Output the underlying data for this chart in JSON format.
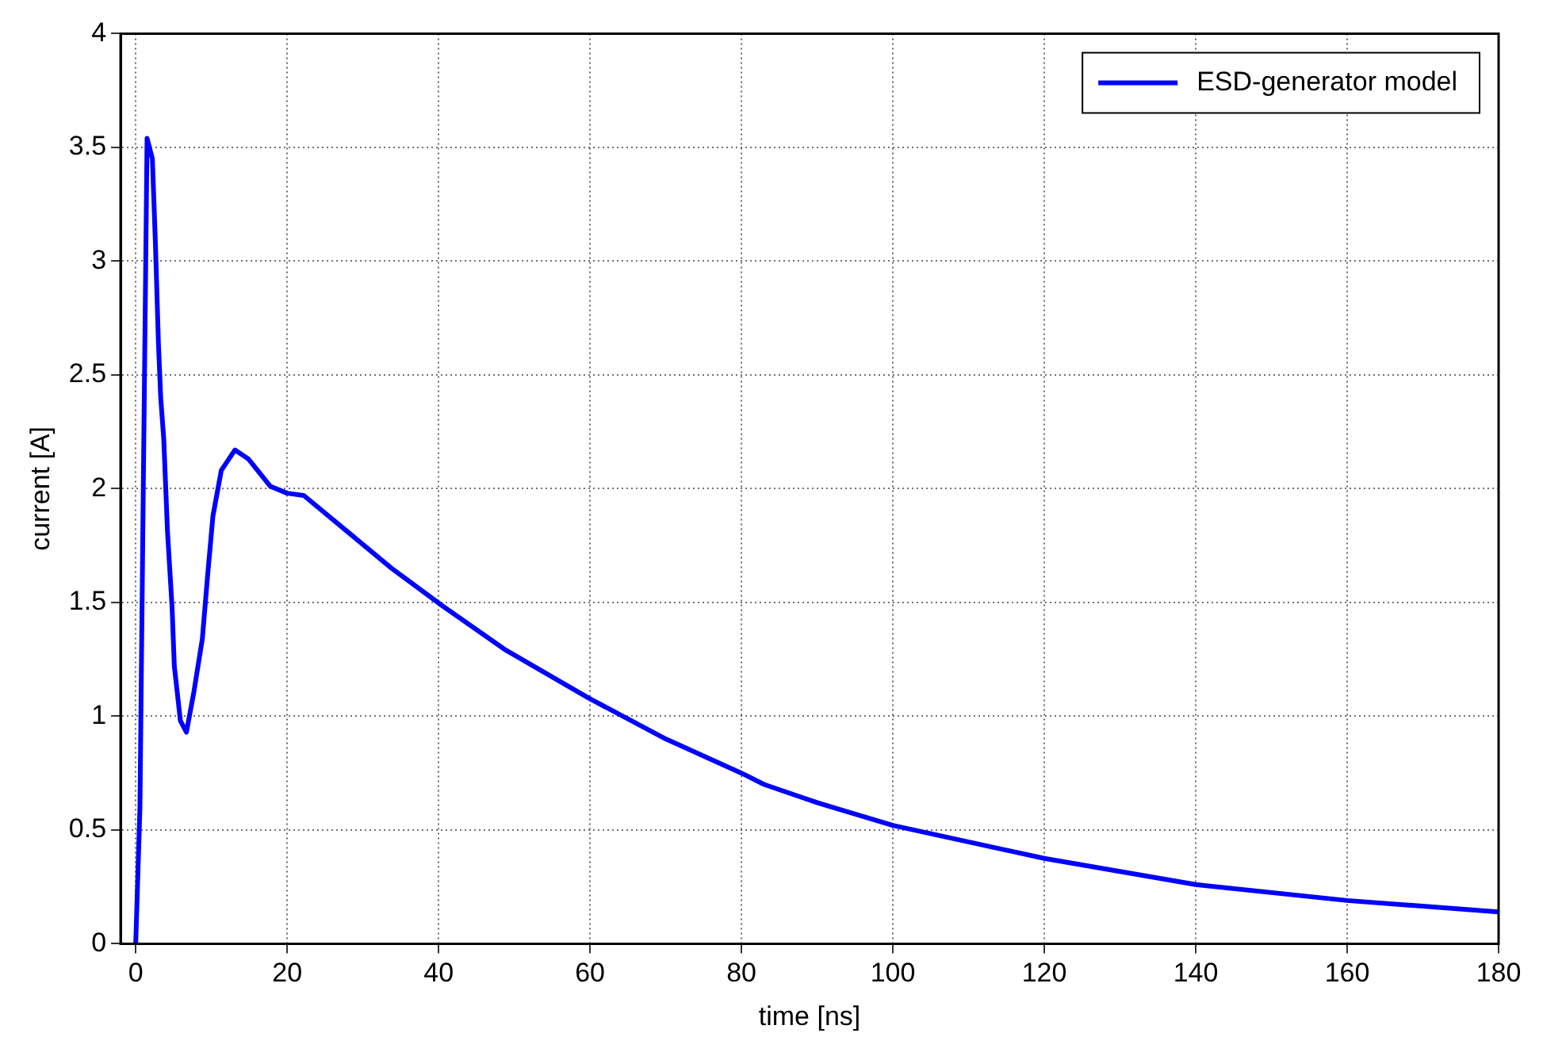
{
  "chart_data": {
    "type": "line",
    "xlabel": "time [ns]",
    "ylabel": "current [A]",
    "xlim": [
      -2,
      180
    ],
    "xticks": [
      0,
      20,
      40,
      60,
      80,
      100,
      120,
      140,
      160,
      180
    ],
    "ylim": [
      0,
      4
    ],
    "yticks": [
      0,
      0.5,
      1,
      1.5,
      2,
      2.5,
      3,
      3.5,
      4
    ],
    "grid": true,
    "legend": "top right",
    "marker": "none",
    "line_style": "solid",
    "series": [
      {
        "name": "ESD-generator model",
        "color": "#0000ff",
        "x": [
          0,
          0.56,
          1.0,
          1.5,
          2.2,
          2.6,
          3.0,
          3.3,
          3.7,
          4.2,
          4.8,
          5.1,
          5.9,
          6.7,
          7.7,
          8.8,
          9.5,
          10.2,
          11.3,
          13.1,
          14.9,
          17.8,
          20,
          22.2,
          28,
          33.8,
          40.3,
          48.9,
          59.8,
          70,
          80,
          83,
          90,
          100,
          120,
          140,
          160,
          180
        ],
        "values": [
          0,
          0.6,
          2.0,
          3.54,
          3.45,
          3.08,
          2.64,
          2.4,
          2.22,
          1.81,
          1.48,
          1.22,
          0.98,
          0.93,
          1.11,
          1.34,
          1.62,
          1.88,
          2.08,
          2.17,
          2.13,
          2.01,
          1.98,
          1.97,
          1.81,
          1.65,
          1.49,
          1.29,
          1.08,
          0.9,
          0.75,
          0.7,
          0.62,
          0.52,
          0.375,
          0.26,
          0.19,
          0.14
        ]
      }
    ]
  }
}
